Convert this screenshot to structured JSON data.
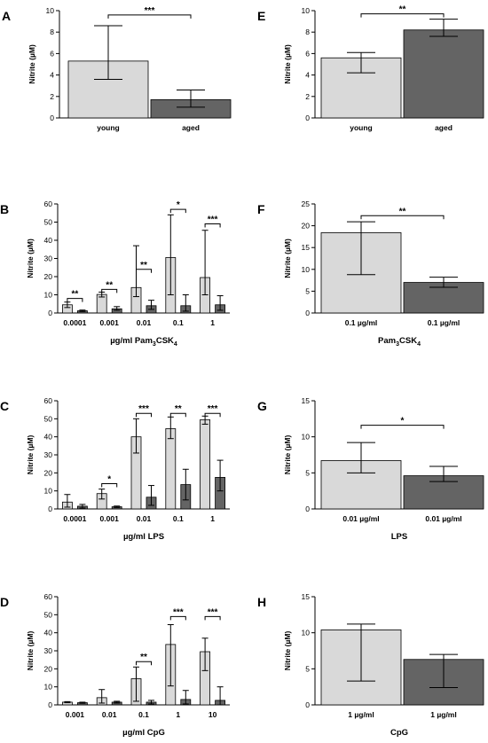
{
  "colors": {
    "young": "#d9d9d9",
    "aged": "#646464",
    "axis": "#000000"
  },
  "chart_data": [
    {
      "id": "A",
      "type": "bar",
      "panel_label": "A",
      "ylabel": "Nitrite (µM)",
      "xlabel": "",
      "ylim": [
        0,
        10
      ],
      "yticks": [
        0,
        2,
        4,
        6,
        8,
        10
      ],
      "categories": [
        "young",
        "aged"
      ],
      "values": [
        5.3,
        1.7
      ],
      "err_low": [
        3.6,
        1.0
      ],
      "err_high": [
        8.6,
        2.6
      ],
      "significance": [
        {
          "between": [
            0,
            1
          ],
          "label": "***",
          "y": 9.6
        }
      ]
    },
    {
      "id": "B",
      "type": "bar",
      "panel_label": "B",
      "ylabel": "Nitrite (µM)",
      "xlabel_parts": [
        "µg/ml Pam",
        "3",
        "CSK",
        "4"
      ],
      "ylim": [
        0,
        60
      ],
      "yticks": [
        0,
        10,
        20,
        30,
        40,
        50,
        60
      ],
      "categories": [
        "0.0001",
        "0.001",
        "0.01",
        "0.1",
        "1"
      ],
      "series": [
        {
          "name": "young",
          "values": [
            4.5,
            10.2,
            14,
            30.5,
            19.5
          ],
          "err_low": [
            3,
            8.8,
            9,
            10,
            10
          ],
          "err_high": [
            6,
            11.5,
            37,
            54,
            45.5
          ]
        },
        {
          "name": "aged",
          "values": [
            1.2,
            2.3,
            4,
            4,
            4.5
          ],
          "err_low": [
            0.8,
            1.5,
            2,
            1,
            1.5
          ],
          "err_high": [
            1.6,
            3.5,
            7,
            10,
            9.5
          ]
        }
      ],
      "significance": [
        {
          "group": 0,
          "label": "**",
          "y": 8
        },
        {
          "group": 1,
          "label": "**",
          "y": 13
        },
        {
          "group": 2,
          "label": "**",
          "y": 24
        },
        {
          "group": 3,
          "label": "*",
          "y": 57
        },
        {
          "group": 4,
          "label": "***",
          "y": 49
        }
      ]
    },
    {
      "id": "C",
      "type": "bar",
      "panel_label": "C",
      "ylabel": "Nitrite (µM)",
      "xlabel": "µg/ml LPS",
      "ylim": [
        0,
        60
      ],
      "yticks": [
        0,
        10,
        20,
        30,
        40,
        50,
        60
      ],
      "categories": [
        "0.0001",
        "0.001",
        "0.01",
        "0.1",
        "1"
      ],
      "series": [
        {
          "name": "young",
          "values": [
            3.8,
            8.5,
            40,
            44.5,
            49.5
          ],
          "err_low": [
            1,
            5.5,
            31,
            39,
            47
          ],
          "err_high": [
            8,
            11,
            50,
            51,
            51.5
          ]
        },
        {
          "name": "aged",
          "values": [
            1.5,
            1.2,
            6.5,
            13.5,
            17.5
          ],
          "err_low": [
            0.5,
            0.8,
            2,
            5,
            10
          ],
          "err_high": [
            2.5,
            1.6,
            13,
            22,
            27
          ]
        }
      ],
      "significance": [
        {
          "group": 1,
          "label": "*",
          "y": 14
        },
        {
          "group": 2,
          "label": "***",
          "y": 53
        },
        {
          "group": 3,
          "label": "**",
          "y": 53
        },
        {
          "group": 4,
          "label": "***",
          "y": 53
        }
      ]
    },
    {
      "id": "D",
      "type": "bar",
      "panel_label": "D",
      "ylabel": "Nitrite (µM)",
      "xlabel": "µg/ml CpG",
      "ylim": [
        0,
        60
      ],
      "yticks": [
        0,
        10,
        20,
        30,
        40,
        50,
        60
      ],
      "categories": [
        "0.001",
        "0.01",
        "0.1",
        "1",
        "10"
      ],
      "series": [
        {
          "name": "young",
          "values": [
            1.5,
            4,
            14.5,
            33.5,
            29.5
          ],
          "err_low": [
            1.2,
            1,
            2,
            10.5,
            19
          ],
          "err_high": [
            1.8,
            8.5,
            21,
            44.5,
            37
          ]
        },
        {
          "name": "aged",
          "values": [
            1.2,
            1.5,
            1.5,
            3,
            2.5
          ],
          "err_low": [
            0.9,
            1,
            0.5,
            0.5,
            0
          ],
          "err_high": [
            1.5,
            2,
            2.5,
            8,
            10
          ]
        }
      ],
      "significance": [
        {
          "group": 2,
          "label": "**",
          "y": 24
        },
        {
          "group": 3,
          "label": "***",
          "y": 49
        },
        {
          "group": 4,
          "label": "***",
          "y": 49
        }
      ]
    },
    {
      "id": "E",
      "type": "bar",
      "panel_label": "E",
      "ylabel": "Nitrite (µM)",
      "xlabel": "",
      "ylim": [
        0,
        10
      ],
      "yticks": [
        0,
        2,
        4,
        6,
        8,
        10
      ],
      "categories": [
        "young",
        "aged"
      ],
      "values": [
        5.6,
        8.2
      ],
      "err_low": [
        4.2,
        7.6
      ],
      "err_high": [
        6.1,
        9.2
      ],
      "significance": [
        {
          "between": [
            0,
            1
          ],
          "label": "**",
          "y": 9.7
        }
      ]
    },
    {
      "id": "F",
      "type": "bar",
      "panel_label": "F",
      "ylabel": "Nitrite (µM)",
      "xlabel_parts": [
        "Pam",
        "3",
        "CSK",
        "4"
      ],
      "ylim": [
        0,
        25
      ],
      "yticks": [
        0,
        5,
        10,
        15,
        20,
        25
      ],
      "categories": [
        "0.1 µg/ml",
        "0.1 µg/ml"
      ],
      "values": [
        18.4,
        7.0
      ],
      "err_low": [
        8.8,
        5.9
      ],
      "err_high": [
        20.9,
        8.2
      ],
      "significance": [
        {
          "between": [
            0,
            1
          ],
          "label": "**",
          "y": 22.3
        }
      ]
    },
    {
      "id": "G",
      "type": "bar",
      "panel_label": "G",
      "ylabel": "Nitrite (µM)",
      "xlabel": "LPS",
      "ylim": [
        0,
        15
      ],
      "yticks": [
        0,
        5,
        10,
        15
      ],
      "categories": [
        "0.01 µg/ml",
        "0.01 µg/ml"
      ],
      "values": [
        6.7,
        4.6
      ],
      "err_low": [
        5.0,
        3.8
      ],
      "err_high": [
        9.2,
        5.9
      ],
      "significance": [
        {
          "between": [
            0,
            1
          ],
          "label": "*",
          "y": 11.6
        }
      ]
    },
    {
      "id": "H",
      "type": "bar",
      "panel_label": "H",
      "ylabel": "Nitrite (µM)",
      "xlabel": "CpG",
      "ylim": [
        0,
        15
      ],
      "yticks": [
        0,
        5,
        10,
        15
      ],
      "categories": [
        "1 µg/ml",
        "1 µg/ml"
      ],
      "values": [
        10.4,
        6.3
      ],
      "err_low": [
        3.3,
        2.4
      ],
      "err_high": [
        11.2,
        7.0
      ],
      "significance": []
    }
  ]
}
